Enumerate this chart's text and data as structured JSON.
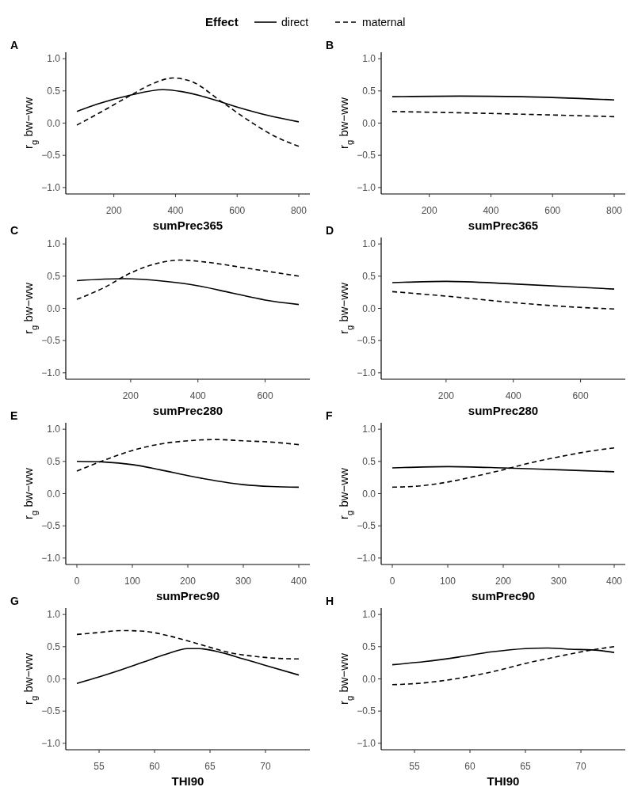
{
  "chart_data": [
    {
      "type": "line",
      "title": "A",
      "xlabel": "sumPrec365",
      "ylabel": "r$_{g}$ bw−ww",
      "legend_title": "Effect",
      "legend": "top",
      "xlim": [
        44,
        836
      ],
      "xticks": [
        200,
        400,
        600,
        800
      ],
      "ylim": [
        -1.1,
        1.1
      ],
      "yticks": [
        {
          "value": -1,
          "label": "−1.0"
        },
        {
          "value": -0.5,
          "label": "−0.5"
        },
        {
          "value": 0,
          "label": "0.0"
        },
        {
          "value": 0.5,
          "label": "0.5"
        },
        {
          "value": 1,
          "label": "1.0"
        }
      ],
      "series": [
        {
          "name": "direct",
          "color": "#000000",
          "line_style": "solid",
          "x": [
            80,
            150,
            250,
            360,
            420,
            500,
            600,
            700,
            800
          ],
          "values": [
            0.18,
            0.3,
            0.43,
            0.52,
            0.49,
            0.4,
            0.25,
            0.12,
            0.02
          ]
        },
        {
          "name": "maternal",
          "color": "#000000",
          "line_style": "dashed",
          "x": [
            80,
            150,
            250,
            330,
            390,
            450,
            550,
            650,
            720,
            800
          ],
          "values": [
            -0.03,
            0.15,
            0.42,
            0.62,
            0.7,
            0.65,
            0.33,
            0.0,
            -0.2,
            -0.36
          ]
        }
      ]
    },
    {
      "type": "line",
      "title": "B",
      "xlabel": "sumPrec365",
      "ylabel": "r$_{g}$ bw−ww",
      "xlim": [
        44,
        836
      ],
      "xticks": [
        200,
        400,
        600,
        800
      ],
      "ylim": [
        -1.1,
        1.1
      ],
      "yticks": [
        {
          "value": -1,
          "label": "−1.0"
        },
        {
          "value": -0.5,
          "label": "−0.5"
        },
        {
          "value": 0,
          "label": "0.0"
        },
        {
          "value": 0.5,
          "label": "0.5"
        },
        {
          "value": 1,
          "label": "1.0"
        }
      ],
      "series": [
        {
          "color": "#000000",
          "line_style": "solid",
          "x": [
            80,
            300,
            500,
            800
          ],
          "values": [
            0.41,
            0.42,
            0.41,
            0.36
          ]
        },
        {
          "color": "#000000",
          "line_style": "dashed",
          "x": [
            80,
            400,
            800
          ],
          "values": [
            0.18,
            0.15,
            0.1
          ]
        }
      ]
    },
    {
      "type": "line",
      "title": "C",
      "xlabel": "sumPrec280",
      "ylabel": "r$_{g}$ bw−ww",
      "xlim": [
        7,
        733
      ],
      "xticks": [
        200,
        400,
        600
      ],
      "ylim": [
        -1.1,
        1.1
      ],
      "yticks": [
        {
          "value": -1,
          "label": "−1.0"
        },
        {
          "value": -0.5,
          "label": "−0.5"
        },
        {
          "value": 0,
          "label": "0.0"
        },
        {
          "value": 0.5,
          "label": "0.5"
        },
        {
          "value": 1,
          "label": "1.0"
        }
      ],
      "series": [
        {
          "color": "#000000",
          "line_style": "solid",
          "x": [
            40,
            180,
            300,
            400,
            500,
            600,
            700
          ],
          "values": [
            0.43,
            0.46,
            0.42,
            0.35,
            0.24,
            0.13,
            0.06
          ]
        },
        {
          "color": "#000000",
          "line_style": "dashed",
          "x": [
            40,
            120,
            200,
            280,
            350,
            420,
            550,
            700
          ],
          "values": [
            0.14,
            0.32,
            0.55,
            0.7,
            0.75,
            0.72,
            0.62,
            0.5
          ]
        }
      ]
    },
    {
      "type": "line",
      "title": "D",
      "xlabel": "sumPrec280",
      "ylabel": "r$_{g}$ bw−ww",
      "xlim": [
        7,
        733
      ],
      "xticks": [
        200,
        400,
        600
      ],
      "ylim": [
        -1.1,
        1.1
      ],
      "yticks": [
        {
          "value": -1,
          "label": "−1.0"
        },
        {
          "value": -0.5,
          "label": "−0.5"
        },
        {
          "value": 0,
          "label": "0.0"
        },
        {
          "value": 0.5,
          "label": "0.5"
        },
        {
          "value": 1,
          "label": "1.0"
        }
      ],
      "series": [
        {
          "color": "#000000",
          "line_style": "solid",
          "x": [
            40,
            200,
            400,
            700
          ],
          "values": [
            0.4,
            0.42,
            0.38,
            0.3
          ]
        },
        {
          "color": "#000000",
          "line_style": "dashed",
          "x": [
            40,
            200,
            400,
            550,
            700
          ],
          "values": [
            0.26,
            0.19,
            0.09,
            0.03,
            -0.01
          ]
        }
      ]
    },
    {
      "type": "line",
      "title": "E",
      "xlabel": "sumPrec90",
      "ylabel": "r$_{g}$ bw−ww",
      "xlim": [
        -20,
        420
      ],
      "xticks": [
        0,
        100,
        200,
        300,
        400
      ],
      "ylim": [
        -1.1,
        1.1
      ],
      "yticks": [
        {
          "value": -1,
          "label": "−1.0"
        },
        {
          "value": -0.5,
          "label": "−0.5"
        },
        {
          "value": 0,
          "label": "0.0"
        },
        {
          "value": 0.5,
          "label": "0.5"
        },
        {
          "value": 1,
          "label": "1.0"
        }
      ],
      "series": [
        {
          "color": "#000000",
          "line_style": "solid",
          "x": [
            0,
            50,
            100,
            150,
            200,
            250,
            300,
            350,
            400
          ],
          "values": [
            0.5,
            0.49,
            0.45,
            0.37,
            0.28,
            0.2,
            0.14,
            0.11,
            0.1
          ]
        },
        {
          "color": "#000000",
          "line_style": "dashed",
          "x": [
            0,
            50,
            100,
            150,
            200,
            250,
            300,
            350,
            400
          ],
          "values": [
            0.35,
            0.52,
            0.67,
            0.77,
            0.82,
            0.84,
            0.82,
            0.8,
            0.76
          ]
        }
      ]
    },
    {
      "type": "line",
      "title": "F",
      "xlabel": "sumPrec90",
      "ylabel": "r$_{g}$ bw−ww",
      "xlim": [
        -20,
        420
      ],
      "xticks": [
        0,
        100,
        200,
        300,
        400
      ],
      "ylim": [
        -1.1,
        1.1
      ],
      "yticks": [
        {
          "value": -1,
          "label": "−1.0"
        },
        {
          "value": -0.5,
          "label": "−0.5"
        },
        {
          "value": 0,
          "label": "0.0"
        },
        {
          "value": 0.5,
          "label": "0.5"
        },
        {
          "value": 1,
          "label": "1.0"
        }
      ],
      "series": [
        {
          "color": "#000000",
          "line_style": "solid",
          "x": [
            0,
            100,
            200,
            300,
            400
          ],
          "values": [
            0.4,
            0.42,
            0.4,
            0.37,
            0.34
          ]
        },
        {
          "color": "#000000",
          "line_style": "dashed",
          "x": [
            0,
            50,
            100,
            150,
            200,
            250,
            300,
            350,
            400
          ],
          "values": [
            0.1,
            0.12,
            0.18,
            0.27,
            0.37,
            0.48,
            0.57,
            0.65,
            0.71
          ]
        }
      ]
    },
    {
      "type": "line",
      "title": "G",
      "xlabel": "THI90",
      "ylabel": "r$_{g}$ bw−ww",
      "xlim": [
        52,
        74
      ],
      "xticks": [
        55,
        60,
        65,
        70
      ],
      "ylim": [
        -1.1,
        1.1
      ],
      "yticks": [
        {
          "value": -1,
          "label": "−1.0"
        },
        {
          "value": -0.5,
          "label": "−0.5"
        },
        {
          "value": 0,
          "label": "0.0"
        },
        {
          "value": 0.5,
          "label": "0.5"
        },
        {
          "value": 1,
          "label": "1.0"
        }
      ],
      "series": [
        {
          "color": "#000000",
          "line_style": "solid",
          "x": [
            53,
            55,
            57,
            59,
            61,
            63,
            64,
            66,
            68,
            70,
            73
          ],
          "values": [
            -0.07,
            0.03,
            0.14,
            0.26,
            0.38,
            0.47,
            0.47,
            0.41,
            0.31,
            0.21,
            0.06
          ]
        },
        {
          "color": "#000000",
          "line_style": "dashed",
          "x": [
            53,
            55,
            57,
            59,
            61,
            63,
            65,
            67,
            69,
            71,
            73
          ],
          "values": [
            0.69,
            0.72,
            0.75,
            0.74,
            0.68,
            0.59,
            0.49,
            0.4,
            0.35,
            0.32,
            0.31
          ]
        }
      ]
    },
    {
      "type": "line",
      "title": "H",
      "xlabel": "THI90",
      "ylabel": "r$_{g}$ bw−ww",
      "xlim": [
        52,
        74
      ],
      "xticks": [
        55,
        60,
        65,
        70
      ],
      "ylim": [
        -1.1,
        1.1
      ],
      "yticks": [
        {
          "value": -1,
          "label": "−1.0"
        },
        {
          "value": -0.5,
          "label": "−0.5"
        },
        {
          "value": 0,
          "label": "0.0"
        },
        {
          "value": 0.5,
          "label": "0.5"
        },
        {
          "value": 1,
          "label": "1.0"
        }
      ],
      "series": [
        {
          "color": "#000000",
          "line_style": "solid",
          "x": [
            53,
            56,
            59,
            62,
            65,
            67,
            69,
            71,
            73
          ],
          "values": [
            0.22,
            0.27,
            0.34,
            0.42,
            0.47,
            0.48,
            0.46,
            0.45,
            0.41
          ]
        },
        {
          "color": "#000000",
          "line_style": "dashed",
          "x": [
            53,
            56,
            59,
            62,
            65,
            68,
            71,
            73
          ],
          "values": [
            -0.09,
            -0.06,
            0.01,
            0.11,
            0.24,
            0.35,
            0.45,
            0.5
          ]
        }
      ]
    }
  ]
}
